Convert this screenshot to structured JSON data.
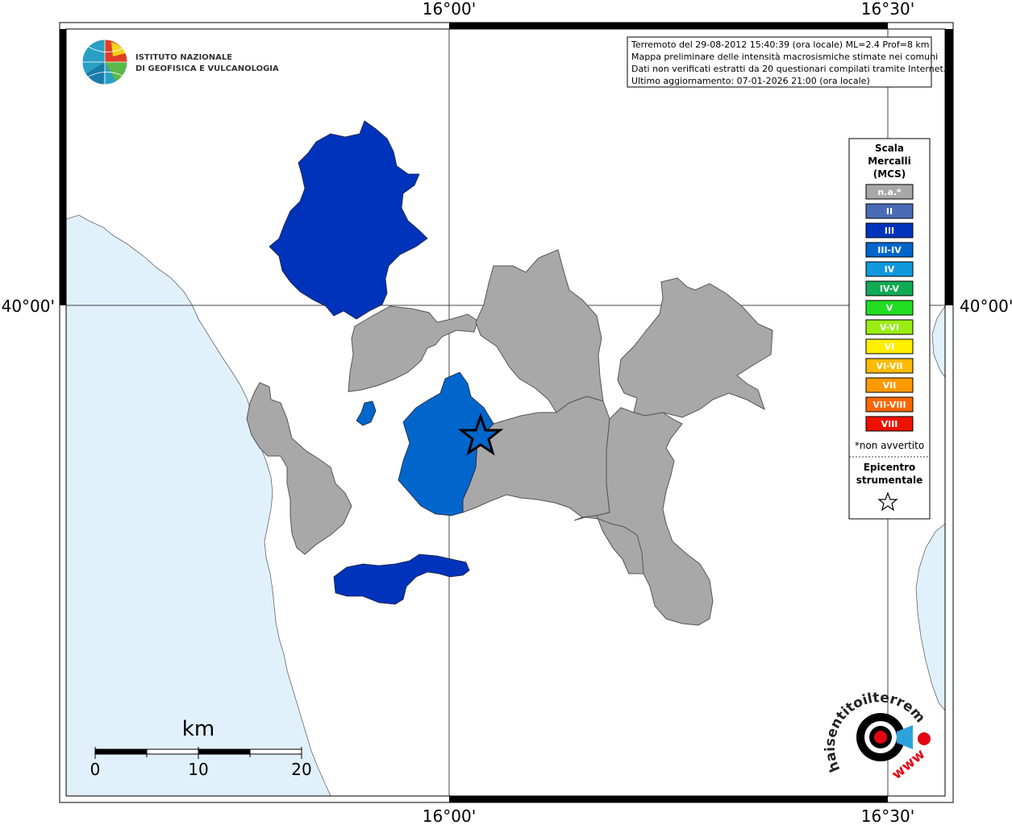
{
  "coordinates": {
    "top_left_lon": "16°00'",
    "top_right_lon": "16°30'",
    "bottom_left_lon": "16°00'",
    "bottom_right_lon": "16°30'",
    "left_lat": "40°00'",
    "right_lat": "40°00'"
  },
  "logo": {
    "line1": "ISTITUTO NAZIONALE",
    "line2": "DI GEOFISICA E VULCANOLOGIA"
  },
  "info_box": {
    "line1": "Terremoto del 29-08-2012 15:40:39 (ora locale) ML=2.4 Prof=8 km",
    "line2": "Mappa preliminare delle intensità macrosismiche stimate nei comuni",
    "line3": "Dati non verificati estratti da 20 questionari compilati tramite Internet.",
    "line4": "Ultimo aggiornamento: 07-01-2026 21:00 (ora locale)"
  },
  "legend": {
    "title_line1": "Scala",
    "title_line2": "Mercalli",
    "title_line3": "(MCS)",
    "items": [
      {
        "label": "n.a.*",
        "color": "#a8a8a8"
      },
      {
        "label": "II",
        "color": "#4a6bb5"
      },
      {
        "label": "III",
        "color": "#0033bb"
      },
      {
        "label": "III-IV",
        "color": "#0066cc"
      },
      {
        "label": "IV",
        "color": "#1199dd"
      },
      {
        "label": "IV-V",
        "color": "#11aa55"
      },
      {
        "label": "V",
        "color": "#22dd22"
      },
      {
        "label": "V-VI",
        "color": "#99ee11"
      },
      {
        "label": "VI",
        "color": "#ffee00"
      },
      {
        "label": "VI-VII",
        "color": "#ffbb00"
      },
      {
        "label": "VII",
        "color": "#ff9900"
      },
      {
        "label": "VII-VIII",
        "color": "#ff6600"
      },
      {
        "label": "VIII",
        "color": "#ee1100"
      }
    ],
    "note": "*non avvertito",
    "epicenter_line1": "Epicentro",
    "epicenter_line2": "strumentale"
  },
  "scale_bar": {
    "unit": "km",
    "ticks": [
      "0",
      "10",
      "20"
    ]
  },
  "watermark": {
    "text": "haisentitoilterremoto.it",
    "www": "www"
  },
  "colors": {
    "sea": "#e0f1fc",
    "land": "#ffffff",
    "not_felt": "#a8a8a8",
    "intensity_III": "#0033bb",
    "intensity_III_IV": "#0066cc"
  }
}
